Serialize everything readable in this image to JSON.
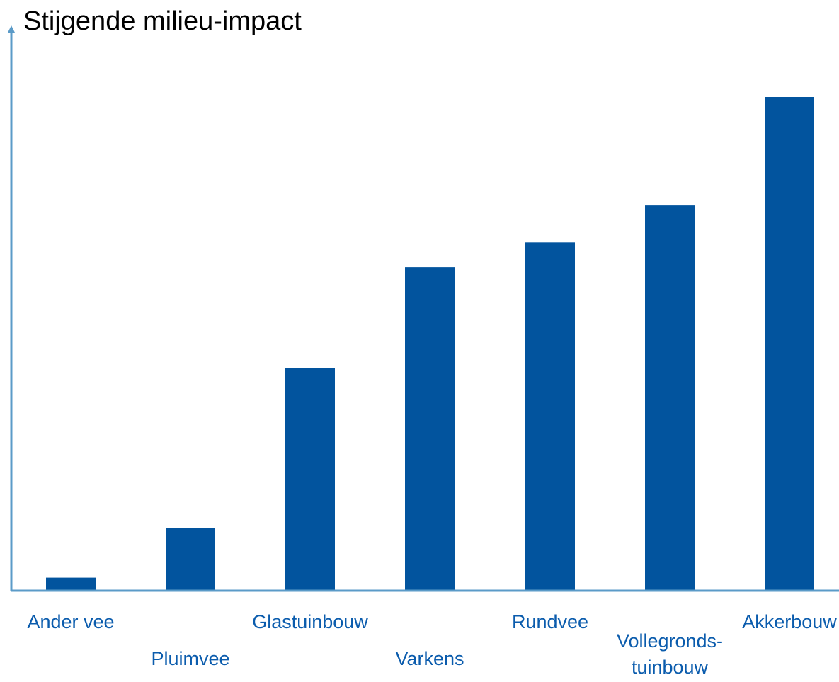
{
  "chart_data": {
    "type": "bar",
    "title": "",
    "xlabel": "",
    "ylabel": "Stijgende milieu-impact",
    "categories": [
      "Ander vee",
      "Pluimvee",
      "Glastuinbouw",
      "Varkens",
      "Rundvee",
      "Vollegronds-tuinbouw",
      "Akkerbouw"
    ],
    "category_lines": [
      [
        "Ander vee"
      ],
      [
        "Pluimvee"
      ],
      [
        "Glastuinbouw"
      ],
      [
        "Varkens"
      ],
      [
        "Rundvee"
      ],
      [
        "Vollegronds-",
        "tuinbouw"
      ],
      [
        "Akkerbouw"
      ]
    ],
    "values": [
      2.5,
      12.5,
      45,
      65.5,
      70.5,
      78,
      100
    ],
    "ylim": [
      0,
      100
    ],
    "y_ticks_shown": false,
    "grid": false,
    "legend": "none",
    "colors": {
      "bar": "#02549E",
      "axis": "#5B9BC8",
      "label": "#0B5CAD",
      "ylabel": "#000000"
    }
  }
}
